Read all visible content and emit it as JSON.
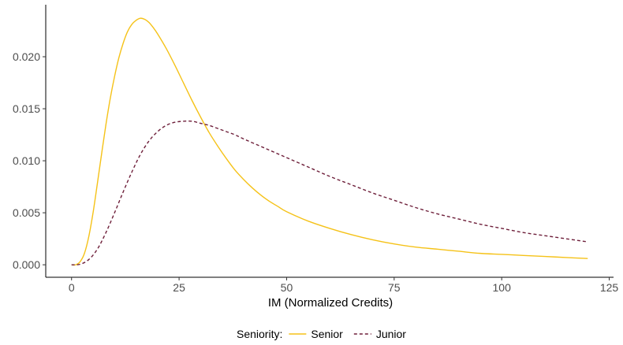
{
  "chart_data": {
    "type": "line",
    "title": "",
    "xlabel": "IM (Normalized Credits)",
    "ylabel": "",
    "xlim": [
      -6,
      126
    ],
    "ylim": [
      -0.0012,
      0.025
    ],
    "x_ticks": [
      0,
      25,
      50,
      75,
      100,
      125
    ],
    "x_tick_labels": [
      "0",
      "25",
      "50",
      "75",
      "100",
      "125"
    ],
    "y_ticks": [
      0.0,
      0.005,
      0.01,
      0.015,
      0.02
    ],
    "y_tick_labels": [
      "0.000",
      "0.005",
      "0.010",
      "0.015",
      "0.020"
    ],
    "grid": false,
    "legend": {
      "title": "Seniority:",
      "position": "bottom"
    },
    "series": [
      {
        "name": "Senior",
        "color": "#f5c218",
        "dash": "solid",
        "x": [
          0,
          1,
          2,
          3,
          4,
          5,
          6,
          7,
          8,
          9,
          10,
          11,
          12,
          13,
          14,
          15,
          16,
          17,
          18,
          19,
          20,
          22,
          24,
          26,
          28,
          30,
          32,
          34,
          36,
          38,
          40,
          42,
          44,
          46,
          48,
          50,
          55,
          60,
          65,
          70,
          75,
          80,
          85,
          90,
          95,
          100,
          105,
          110,
          115,
          120
        ],
        "y": [
          0.0,
          0.0,
          0.0003,
          0.0011,
          0.0027,
          0.005,
          0.0078,
          0.0107,
          0.0135,
          0.016,
          0.0181,
          0.0199,
          0.0213,
          0.0224,
          0.0231,
          0.0235,
          0.0237,
          0.0236,
          0.0233,
          0.0228,
          0.0222,
          0.0208,
          0.0192,
          0.0175,
          0.0158,
          0.0142,
          0.0127,
          0.0114,
          0.0102,
          0.0091,
          0.0082,
          0.0074,
          0.0067,
          0.0061,
          0.0056,
          0.0051,
          0.0042,
          0.0035,
          0.0029,
          0.0024,
          0.002,
          0.0017,
          0.0015,
          0.0013,
          0.0011,
          0.001,
          0.0009,
          0.0008,
          0.0007,
          0.0006
        ]
      },
      {
        "name": "Junior",
        "color": "#6e1f3a",
        "dash": "dashed",
        "x": [
          0,
          2,
          4,
          6,
          8,
          10,
          12,
          14,
          16,
          18,
          20,
          22,
          24,
          26,
          28,
          30,
          32,
          34,
          36,
          38,
          40,
          45,
          50,
          55,
          60,
          65,
          70,
          75,
          80,
          85,
          90,
          95,
          100,
          105,
          110,
          115,
          120
        ],
        "y": [
          0.0,
          5e-05,
          0.0005,
          0.0015,
          0.0031,
          0.005,
          0.007,
          0.0089,
          0.0106,
          0.0119,
          0.0128,
          0.0134,
          0.0137,
          0.0138,
          0.0138,
          0.0136,
          0.0134,
          0.0131,
          0.0128,
          0.0125,
          0.0121,
          0.0112,
          0.0103,
          0.0094,
          0.0085,
          0.0077,
          0.0069,
          0.0062,
          0.0055,
          0.0049,
          0.0044,
          0.0039,
          0.0035,
          0.0031,
          0.0028,
          0.0025,
          0.0022
        ]
      }
    ]
  }
}
